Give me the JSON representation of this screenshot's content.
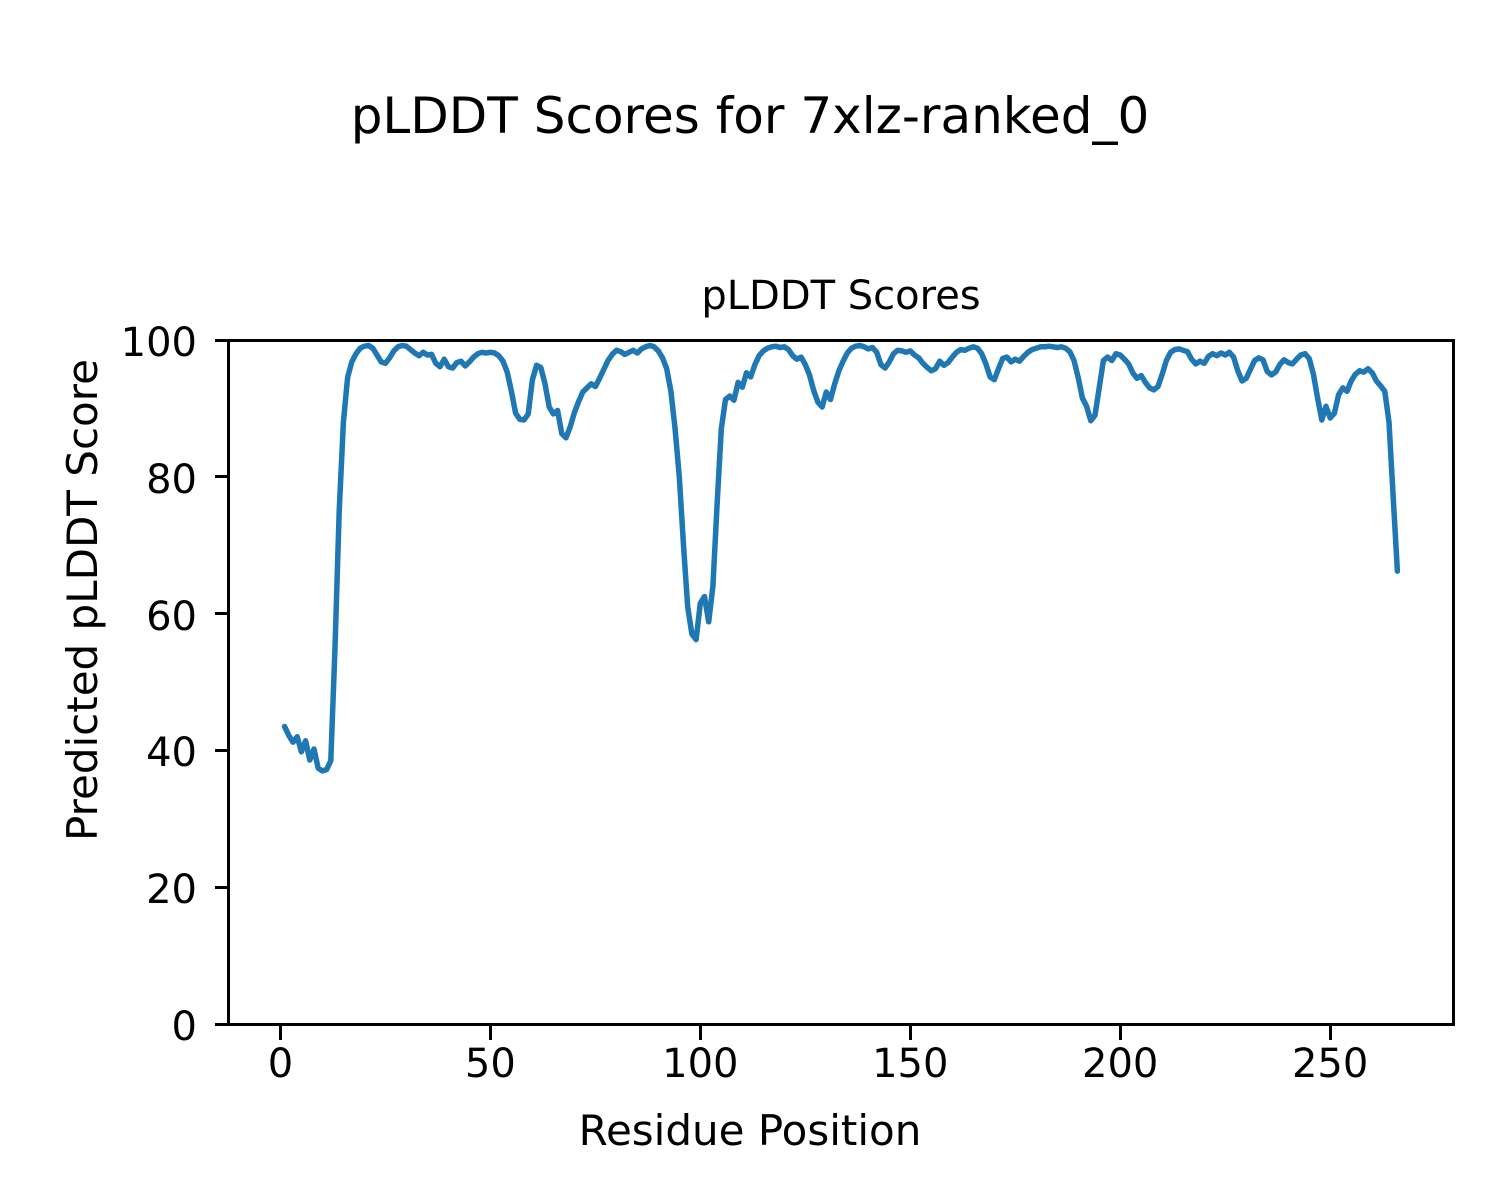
{
  "chart_data": {
    "type": "line",
    "title": "pLDDT Scores for 7xlz-ranked_0",
    "axes_title": "pLDDT Scores",
    "xlabel": "Residue Position",
    "ylabel": "Predicted pLDDT Score",
    "xlim": [
      -12.25,
      279.25
    ],
    "ylim": [
      0,
      100
    ],
    "xticks": [
      0,
      50,
      100,
      150,
      200,
      250
    ],
    "yticks": [
      0,
      20,
      40,
      60,
      80,
      100
    ],
    "grid": false,
    "legend": "none",
    "line_color": "#1f77b4",
    "line_width": 5.5,
    "series": [
      {
        "x_start": 1,
        "x_step": 1,
        "values": [
          43.5,
          42.2,
          41.2,
          42.0,
          39.8,
          41.4,
          38.6,
          40.2,
          37.4,
          37.0,
          37.2,
          38.5,
          55.0,
          75.0,
          88.0,
          94.5,
          96.8,
          98.0,
          98.8,
          99.1,
          99.2,
          98.8,
          97.8,
          96.8,
          96.6,
          97.4,
          98.4,
          99.0,
          99.2,
          99.1,
          98.6,
          98.1,
          97.7,
          98.2,
          97.8,
          97.9,
          96.6,
          96.1,
          97.2,
          96.1,
          95.9,
          96.7,
          96.9,
          96.2,
          96.8,
          97.5,
          98.0,
          98.2,
          98.1,
          98.2,
          98.1,
          97.7,
          96.9,
          95.3,
          92.5,
          89.3,
          88.4,
          88.3,
          89.2,
          94.2,
          96.3,
          96.0,
          93.6,
          90.2,
          89.2,
          89.7,
          86.3,
          85.7,
          87.3,
          89.4,
          91.0,
          92.4,
          93.0,
          93.6,
          93.2,
          94.4,
          95.7,
          97.0,
          97.9,
          98.5,
          98.3,
          97.9,
          98.2,
          98.5,
          98.1,
          98.7,
          99.0,
          99.2,
          99.0,
          98.4,
          97.4,
          95.8,
          92.5,
          87.0,
          80.0,
          70.0,
          61.0,
          57.0,
          56.2,
          61.5,
          62.5,
          58.8,
          64.0,
          76.0,
          87.0,
          91.3,
          91.8,
          91.2,
          93.8,
          93.1,
          95.2,
          94.6,
          96.4,
          97.7,
          98.4,
          98.8,
          99.0,
          99.1,
          98.9,
          99.0,
          98.6,
          97.7,
          97.2,
          97.5,
          96.4,
          94.9,
          92.6,
          90.9,
          90.2,
          92.4,
          91.3,
          93.6,
          95.5,
          96.9,
          98.1,
          98.8,
          99.1,
          99.2,
          99.0,
          98.7,
          98.9,
          98.2,
          96.4,
          95.9,
          96.8,
          98.0,
          98.5,
          98.4,
          98.2,
          98.4,
          97.8,
          97.4,
          96.6,
          96.0,
          95.5,
          95.8,
          96.9,
          96.3,
          96.7,
          97.5,
          98.2,
          98.6,
          98.5,
          98.8,
          99.0,
          98.8,
          98.0,
          96.5,
          94.6,
          94.2,
          95.8,
          97.3,
          97.5,
          96.8,
          97.2,
          96.9,
          97.6,
          98.2,
          98.6,
          98.8,
          99.0,
          99.0,
          99.1,
          99.0,
          98.9,
          99.0,
          98.8,
          98.3,
          97.0,
          94.5,
          91.5,
          90.3,
          88.2,
          89.0,
          93.0,
          97.0,
          97.5,
          97.0,
          98.0,
          97.8,
          97.2,
          96.5,
          95.2,
          94.4,
          94.8,
          93.8,
          93.0,
          92.7,
          93.2,
          95.0,
          97.0,
          98.2,
          98.6,
          98.7,
          98.5,
          98.3,
          97.2,
          96.5,
          96.9,
          96.6,
          97.6,
          98.0,
          97.7,
          98.1,
          97.8,
          98.2,
          97.5,
          95.5,
          94.0,
          94.4,
          95.7,
          97.0,
          97.4,
          97.1,
          95.4,
          94.9,
          95.3,
          96.4,
          97.1,
          96.7,
          96.5,
          97.2,
          97.8,
          98.0,
          97.3,
          95.0,
          91.5,
          88.3,
          90.3,
          88.6,
          89.3,
          92.0,
          93.0,
          92.5,
          94.0,
          95.0,
          95.5,
          95.3,
          95.8,
          95.2,
          94.0,
          93.3,
          92.5,
          88.0,
          77.0,
          66.2
        ]
      }
    ]
  }
}
